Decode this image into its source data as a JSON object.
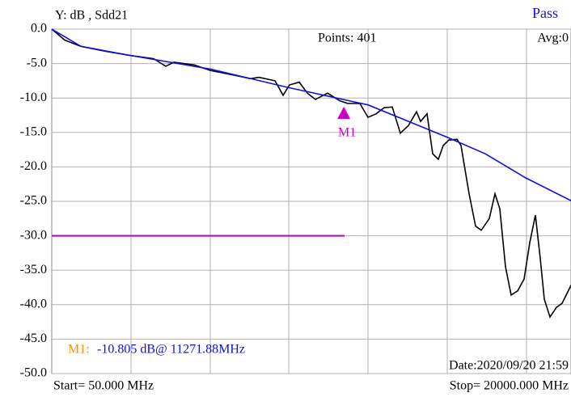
{
  "chart_data": {
    "type": "line",
    "title": "Y: dB , Sdd21",
    "status": "Pass",
    "points_label": "Points: 401",
    "avg_label": "Avg:0",
    "start_label": "Start= 50.000 MHz",
    "stop_label": "Stop=  20000.000 MHz",
    "date_label": "Date:2020/09/20 21:59",
    "marker": {
      "label": "M1",
      "x": 11271.88,
      "y": -10.805,
      "color": "#cc00cc",
      "readout_name": "M1:",
      "readout_value": "-10.805 dB@ 11271.88MHz"
    },
    "xlim": [
      50,
      20000
    ],
    "ylim": [
      -50,
      0
    ],
    "yticks": [
      {
        "value": 0,
        "label": "0.0"
      },
      {
        "value": -5,
        "label": "-5.0"
      },
      {
        "value": -10,
        "label": "-10.0"
      },
      {
        "value": -15,
        "label": "-15.0"
      },
      {
        "value": -20,
        "label": "-20.0"
      },
      {
        "value": -25,
        "label": "-25.0"
      },
      {
        "value": -30,
        "label": "-30.0"
      },
      {
        "value": -35,
        "label": "-35.0"
      },
      {
        "value": -40,
        "label": "-40.0"
      },
      {
        "value": -45,
        "label": "-45.0"
      },
      {
        "value": -50,
        "label": "-50.0"
      }
    ],
    "grid": true,
    "series": [
      {
        "color": "#000000",
        "x": [
          50,
          547,
          1169,
          2101,
          3033,
          3966,
          4432,
          4742,
          5519,
          6141,
          7073,
          7694,
          8005,
          8627,
          8938,
          9186,
          9559,
          9870,
          10181,
          10647,
          11113,
          11423,
          11889,
          12200,
          12511,
          12822,
          13132,
          13443,
          13754,
          14065,
          14220,
          14469,
          14686,
          14904,
          15090,
          15308,
          15619,
          15774,
          16085,
          16333,
          16551,
          16862,
          17079,
          17266,
          17483,
          17701,
          17950,
          18198,
          18416,
          18633,
          18820,
          18975,
          19193,
          19441,
          19659,
          20000
        ],
        "values": [
          0,
          -1.6,
          -2.5,
          -3.2,
          -3.8,
          -4.3,
          -5.4,
          -4.8,
          -5.2,
          -6.0,
          -6.7,
          -7.2,
          -7.0,
          -7.5,
          -9.6,
          -8.1,
          -7.7,
          -9.3,
          -10.2,
          -9.3,
          -10.4,
          -10.8,
          -10.8,
          -12.8,
          -12.3,
          -11.4,
          -11.3,
          -15.1,
          -14.0,
          -12.0,
          -13.4,
          -12.3,
          -18.1,
          -18.9,
          -16.9,
          -16.1,
          -16.0,
          -16.9,
          -23.9,
          -28.6,
          -29.2,
          -27.5,
          -23.9,
          -26.1,
          -34.5,
          -38.6,
          -38.0,
          -36.3,
          -31.0,
          -27.0,
          -33.3,
          -39.2,
          -41.8,
          -40.4,
          -39.8,
          -37.2
        ]
      },
      {
        "color": "#1010e0",
        "x": [
          50,
          1169,
          3033,
          6141,
          9155,
          12200,
          15246,
          16706,
          18260,
          20000
        ],
        "values": [
          0,
          -2.5,
          -3.8,
          -5.8,
          -8.5,
          -11.0,
          -15.7,
          -18.1,
          -21.6,
          -24.9
        ]
      }
    ],
    "limit_line": {
      "value": -30,
      "x": [
        50,
        11300
      ],
      "color": "#b000d0"
    }
  }
}
